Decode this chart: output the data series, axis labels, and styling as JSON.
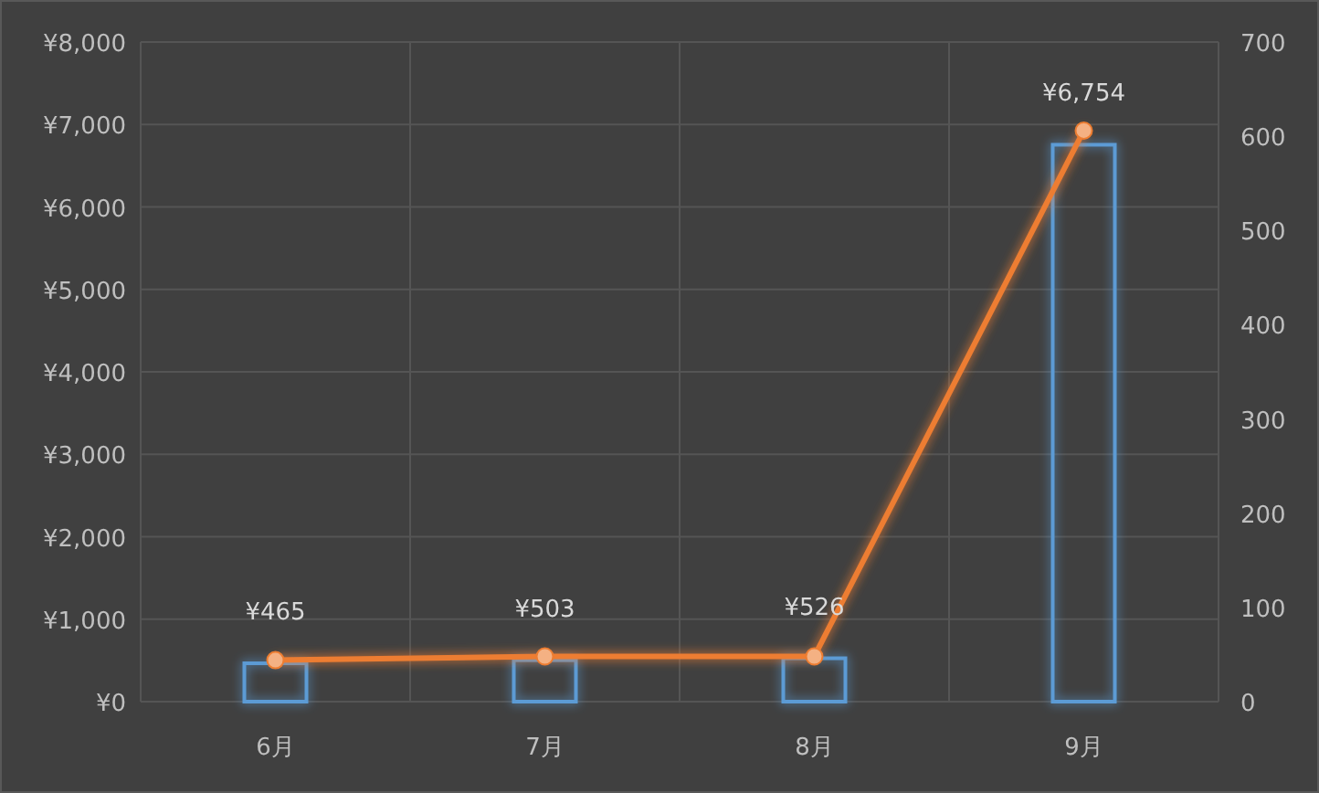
{
  "chart_data": {
    "type": "bar",
    "categories": [
      "6月",
      "7月",
      "8月",
      "9月"
    ],
    "series": [
      {
        "color": "#5b9bd5",
        "values": [
          465,
          503,
          526,
          6754
        ],
        "value_labels": [
          "¥465",
          "¥503",
          "¥526",
          "¥6,754"
        ]
      },
      {
        "type": "line",
        "axis": "y2",
        "color": "#ed7d31",
        "values": [
          44,
          48,
          48,
          606
        ]
      }
    ],
    "marker": "circle",
    "ylim": [
      0,
      8000
    ],
    "yticks": [
      {
        "value": 0,
        "label": "¥0"
      },
      {
        "value": 1000,
        "label": "¥1,000"
      },
      {
        "value": 2000,
        "label": "¥2,000"
      },
      {
        "value": 3000,
        "label": "¥3,000"
      },
      {
        "value": 4000,
        "label": "¥4,000"
      },
      {
        "value": 5000,
        "label": "¥5,000"
      },
      {
        "value": 6000,
        "label": "¥6,000"
      },
      {
        "value": 7000,
        "label": "¥7,000"
      },
      {
        "value": 8000,
        "label": "¥8,000"
      }
    ],
    "y2lim": [
      0,
      700
    ],
    "y2ticks": [
      0,
      100,
      200,
      300,
      400,
      500,
      600,
      700
    ],
    "grid": true
  }
}
